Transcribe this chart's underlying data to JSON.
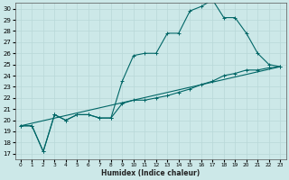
{
  "xlabel": "Humidex (Indice chaleur)",
  "background_color": "#cce8e8",
  "grid_color": "#b8d8d8",
  "line_color": "#006666",
  "xlim": [
    -0.5,
    23.5
  ],
  "ylim": [
    16.5,
    30.5
  ],
  "xticks": [
    0,
    1,
    2,
    3,
    4,
    5,
    6,
    7,
    8,
    9,
    10,
    11,
    12,
    13,
    14,
    15,
    16,
    17,
    18,
    19,
    20,
    21,
    22,
    23
  ],
  "yticks": [
    17,
    18,
    19,
    20,
    21,
    22,
    23,
    24,
    25,
    26,
    27,
    28,
    29,
    30
  ],
  "series": [
    {
      "x": [
        0,
        1,
        2,
        3,
        4,
        5,
        6,
        7,
        8,
        9,
        10,
        11,
        12,
        13,
        14,
        15,
        16,
        17,
        18,
        19,
        20,
        21,
        22,
        23
      ],
      "y": [
        19.5,
        19.5,
        17.2,
        20.5,
        20.0,
        20.5,
        20.5,
        20.2,
        20.2,
        23.5,
        25.8,
        26.0,
        26.0,
        27.8,
        27.8,
        29.8,
        30.2,
        30.8,
        29.2,
        29.2,
        27.8,
        26.0,
        25.0,
        24.8
      ],
      "markers": true
    },
    {
      "x": [
        0,
        1,
        2,
        3,
        4,
        5,
        6,
        7,
        8,
        9,
        10,
        11,
        12,
        13,
        14,
        15,
        16,
        17,
        18,
        19,
        20,
        21,
        22,
        23
      ],
      "y": [
        19.5,
        19.5,
        17.2,
        20.5,
        20.0,
        20.5,
        20.5,
        20.2,
        20.2,
        21.5,
        21.8,
        21.8,
        22.0,
        22.2,
        22.5,
        22.8,
        23.2,
        23.5,
        24.0,
        24.2,
        24.5,
        24.5,
        24.7,
        24.8
      ],
      "markers": true
    },
    {
      "x": [
        0,
        23
      ],
      "y": [
        19.5,
        24.8
      ],
      "markers": false
    }
  ]
}
